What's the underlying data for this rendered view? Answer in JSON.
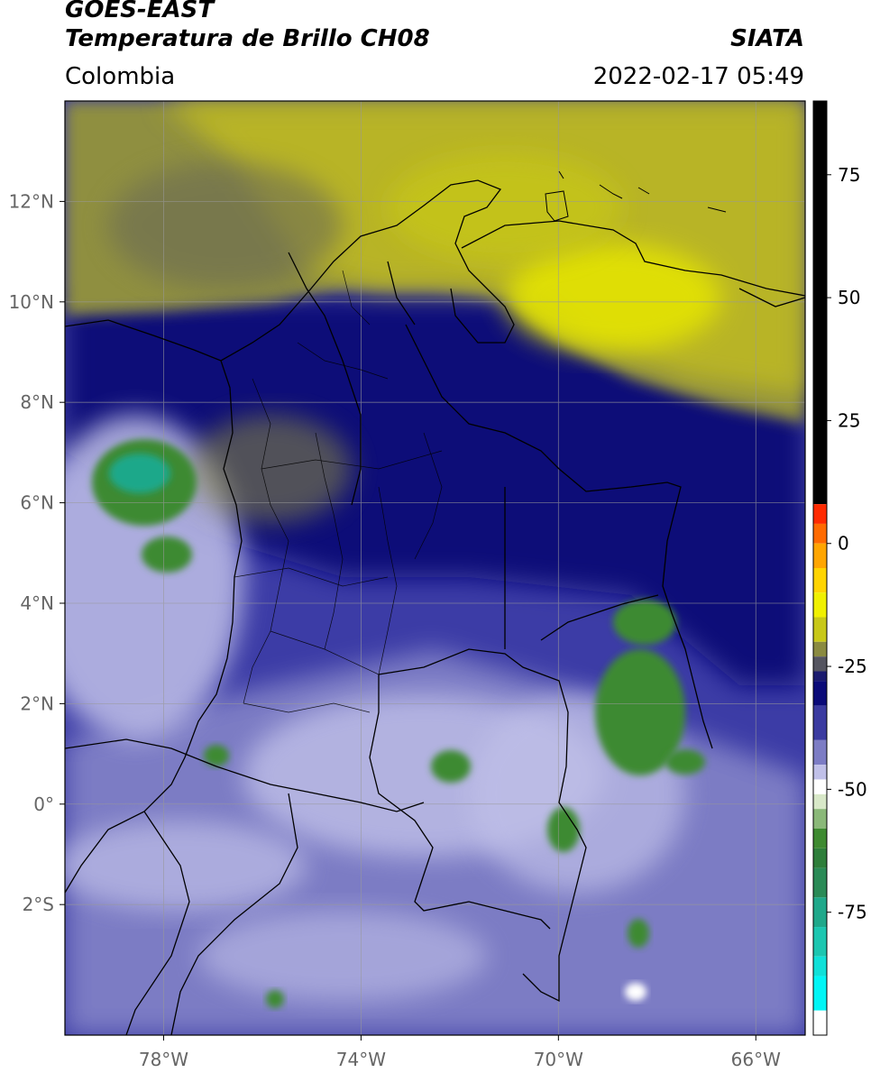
{
  "header": {
    "satellite": "GOES-EAST",
    "product": "Temperatura de Brillo CH08",
    "region": "Colombia",
    "org": "SIATA",
    "datetime": "2022-02-17 05:49"
  },
  "map": {
    "lon_range": [
      -80,
      -65
    ],
    "lat_range": [
      -4.6,
      14
    ],
    "lat_ticks": [
      {
        "value": 12,
        "label": "12°N"
      },
      {
        "value": 10,
        "label": "10°N"
      },
      {
        "value": 8,
        "label": "8°N"
      },
      {
        "value": 6,
        "label": "6°N"
      },
      {
        "value": 4,
        "label": "4°N"
      },
      {
        "value": 2,
        "label": "2°N"
      },
      {
        "value": 0,
        "label": "0°"
      },
      {
        "value": -2,
        "label": "2°S"
      }
    ],
    "lon_ticks": [
      {
        "value": -78,
        "label": "78°W"
      },
      {
        "value": -74,
        "label": "74°W"
      },
      {
        "value": -70,
        "label": "70°W"
      },
      {
        "value": -66,
        "label": "66°W"
      }
    ],
    "grid": true
  },
  "colorbar": {
    "range": [
      -100,
      90
    ],
    "ticks": [
      {
        "value": 75,
        "label": "75"
      },
      {
        "value": 50,
        "label": "50"
      },
      {
        "value": 25,
        "label": "25"
      },
      {
        "value": 0,
        "label": "0"
      },
      {
        "value": -25,
        "label": "-25"
      },
      {
        "value": -50,
        "label": "-50"
      },
      {
        "value": -75,
        "label": "-75"
      }
    ],
    "segments": [
      {
        "from": 8,
        "to": 90,
        "color": "#000000"
      },
      {
        "from": 4,
        "to": 8,
        "color": "#ff2a00"
      },
      {
        "from": 0,
        "to": 4,
        "color": "#ff6a00"
      },
      {
        "from": -5,
        "to": 0,
        "color": "#ffa500"
      },
      {
        "from": -10,
        "to": -5,
        "color": "#ffd400"
      },
      {
        "from": -15,
        "to": -10,
        "color": "#f0f000"
      },
      {
        "from": -20,
        "to": -15,
        "color": "#c8c818"
      },
      {
        "from": -23,
        "to": -20,
        "color": "#8a8a40"
      },
      {
        "from": -26,
        "to": -23,
        "color": "#555560"
      },
      {
        "from": -28,
        "to": -26,
        "color": "#1a1a6e"
      },
      {
        "from": -33,
        "to": -28,
        "color": "#0a0a78"
      },
      {
        "from": -40,
        "to": -33,
        "color": "#3a3aa0"
      },
      {
        "from": -45,
        "to": -40,
        "color": "#7c7cc4"
      },
      {
        "from": -48,
        "to": -45,
        "color": "#c0c0e8"
      },
      {
        "from": -51,
        "to": -48,
        "color": "#ffffff"
      },
      {
        "from": -54,
        "to": -51,
        "color": "#d8e8c8"
      },
      {
        "from": -58,
        "to": -54,
        "color": "#8ab878"
      },
      {
        "from": -62,
        "to": -58,
        "color": "#3e8a30"
      },
      {
        "from": -66,
        "to": -62,
        "color": "#2e7e3a"
      },
      {
        "from": -72,
        "to": -66,
        "color": "#2a8a56"
      },
      {
        "from": -78,
        "to": -72,
        "color": "#1fa88a"
      },
      {
        "from": -84,
        "to": -78,
        "color": "#1cc6b0"
      },
      {
        "from": -88,
        "to": -84,
        "color": "#10e0d8"
      },
      {
        "from": -95,
        "to": -88,
        "color": "#00f5f5"
      },
      {
        "from": -100,
        "to": -95,
        "color": "#ffffff"
      }
    ]
  },
  "colors": {
    "warm_clear": "#b8b428",
    "cold_cloud": "#0a0a78",
    "cloud_light": "#8c8cd0",
    "deep_convection": "#3e8a30",
    "border": "#000000"
  }
}
